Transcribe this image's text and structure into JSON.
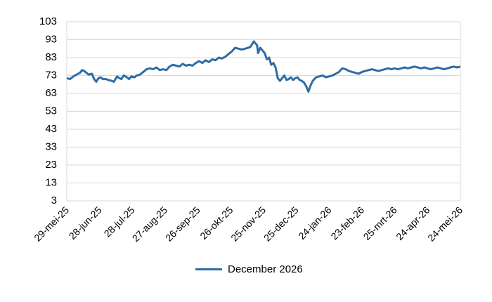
{
  "chart_data": {
    "type": "line",
    "ylim": [
      3,
      103
    ],
    "yticks": [
      3,
      13,
      23,
      33,
      43,
      53,
      63,
      73,
      83,
      93,
      103
    ],
    "xlim": [
      0,
      360
    ],
    "xticks": [
      {
        "label": "29-mei-25",
        "x": 0
      },
      {
        "label": "28-jun-25",
        "x": 30
      },
      {
        "label": "28-jul-25",
        "x": 60
      },
      {
        "label": "27-aug-25",
        "x": 90
      },
      {
        "label": "26-sep-25",
        "x": 120
      },
      {
        "label": "26-okt-25",
        "x": 150
      },
      {
        "label": "25-nov-25",
        "x": 180
      },
      {
        "label": "25-dec-25",
        "x": 210
      },
      {
        "label": "24-jan-26",
        "x": 240
      },
      {
        "label": "23-feb-26",
        "x": 270
      },
      {
        "label": "25-mrt-26",
        "x": 300
      },
      {
        "label": "24-apr-26",
        "x": 330
      },
      {
        "label": "24-mei-26",
        "x": 360
      }
    ],
    "grid": true,
    "legend_position": "bottom",
    "series": [
      {
        "name": "December 2026",
        "color": "#2e6da4",
        "points": [
          [
            0,
            71.5
          ],
          [
            3,
            71
          ],
          [
            6,
            72.5
          ],
          [
            9,
            73.5
          ],
          [
            12,
            74.5
          ],
          [
            14,
            76
          ],
          [
            16,
            75.5
          ],
          [
            18,
            74.5
          ],
          [
            20,
            73.5
          ],
          [
            23,
            74
          ],
          [
            25,
            71
          ],
          [
            27,
            69.5
          ],
          [
            29,
            71.5
          ],
          [
            31,
            72
          ],
          [
            33,
            71
          ],
          [
            36,
            71
          ],
          [
            38,
            70.5
          ],
          [
            41,
            70
          ],
          [
            43,
            69.5
          ],
          [
            46,
            72.5
          ],
          [
            48,
            71.5
          ],
          [
            50,
            71
          ],
          [
            52,
            73
          ],
          [
            55,
            72
          ],
          [
            57,
            71
          ],
          [
            59,
            72.5
          ],
          [
            62,
            72
          ],
          [
            64,
            73
          ],
          [
            67,
            73.5
          ],
          [
            70,
            75
          ],
          [
            73,
            76.5
          ],
          [
            76,
            77
          ],
          [
            79,
            76.5
          ],
          [
            82,
            77.5
          ],
          [
            85,
            76
          ],
          [
            88,
            76.5
          ],
          [
            91,
            76
          ],
          [
            94,
            78
          ],
          [
            97,
            79
          ],
          [
            100,
            78.5
          ],
          [
            103,
            78
          ],
          [
            106,
            79.5
          ],
          [
            109,
            78.5
          ],
          [
            112,
            79
          ],
          [
            115,
            78.5
          ],
          [
            118,
            80
          ],
          [
            121,
            81
          ],
          [
            124,
            80
          ],
          [
            127,
            81.5
          ],
          [
            130,
            80.5
          ],
          [
            133,
            82
          ],
          [
            136,
            81.5
          ],
          [
            139,
            83
          ],
          [
            142,
            82.5
          ],
          [
            145,
            83.5
          ],
          [
            148,
            85
          ],
          [
            151,
            86.5
          ],
          [
            154,
            88.5
          ],
          [
            157,
            88
          ],
          [
            160,
            87.5
          ],
          [
            163,
            88
          ],
          [
            166,
            88.5
          ],
          [
            168,
            89
          ],
          [
            171,
            92
          ],
          [
            174,
            90
          ],
          [
            175,
            85.5
          ],
          [
            177,
            88.5
          ],
          [
            179,
            87
          ],
          [
            181,
            85.5
          ],
          [
            183,
            82
          ],
          [
            185,
            83
          ],
          [
            187,
            79
          ],
          [
            189,
            80
          ],
          [
            191,
            77.5
          ],
          [
            193,
            71.5
          ],
          [
            195,
            70
          ],
          [
            197,
            71.5
          ],
          [
            199,
            73
          ],
          [
            201,
            70.5
          ],
          [
            203,
            71
          ],
          [
            205,
            72
          ],
          [
            207,
            70.5
          ],
          [
            209,
            71.5
          ],
          [
            211,
            72
          ],
          [
            213,
            70.5
          ],
          [
            215,
            70
          ],
          [
            217,
            69
          ],
          [
            219,
            67
          ],
          [
            221,
            64
          ],
          [
            223,
            67.5
          ],
          [
            225,
            70
          ],
          [
            228,
            72
          ],
          [
            231,
            72.5
          ],
          [
            234,
            73
          ],
          [
            237,
            72
          ],
          [
            240,
            72.5
          ],
          [
            243,
            73
          ],
          [
            246,
            74
          ],
          [
            249,
            75
          ],
          [
            252,
            77
          ],
          [
            255,
            76.5
          ],
          [
            258,
            75.5
          ],
          [
            261,
            75
          ],
          [
            264,
            74.5
          ],
          [
            267,
            74
          ],
          [
            270,
            75
          ],
          [
            273,
            75.5
          ],
          [
            276,
            76
          ],
          [
            279,
            76.5
          ],
          [
            282,
            76
          ],
          [
            285,
            75.5
          ],
          [
            288,
            76
          ],
          [
            291,
            76.5
          ],
          [
            294,
            77
          ],
          [
            297,
            76.5
          ],
          [
            300,
            77
          ],
          [
            303,
            76.5
          ],
          [
            306,
            77
          ],
          [
            309,
            77.5
          ],
          [
            312,
            77
          ],
          [
            315,
            77.5
          ],
          [
            318,
            78
          ],
          [
            321,
            77.5
          ],
          [
            324,
            77
          ],
          [
            327,
            77.5
          ],
          [
            330,
            77
          ],
          [
            333,
            76.5
          ],
          [
            336,
            77
          ],
          [
            339,
            77.5
          ],
          [
            342,
            77
          ],
          [
            345,
            76.5
          ],
          [
            348,
            77
          ],
          [
            351,
            77.5
          ],
          [
            354,
            78
          ],
          [
            357,
            77.5
          ],
          [
            360,
            78
          ]
        ]
      }
    ]
  }
}
